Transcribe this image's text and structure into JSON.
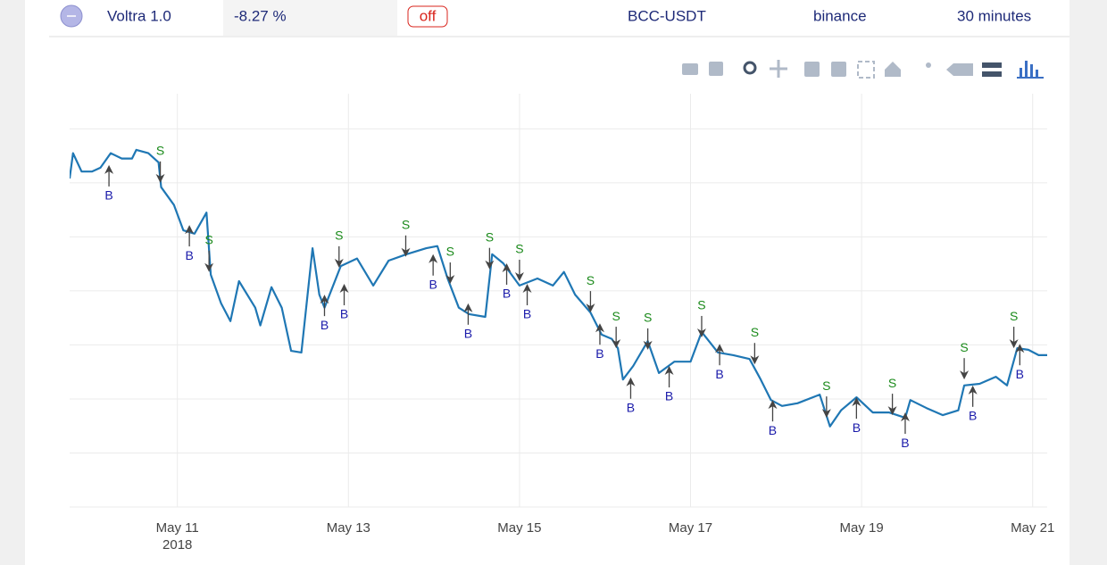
{
  "header": {
    "name": "Voltra 1.0",
    "change": "-8.27 %",
    "status": "off",
    "pair": "BCC-USDT",
    "exchange": "binance",
    "interval": "30 minutes"
  },
  "chart_data": {
    "type": "line",
    "x": [
      9.74,
      9.78,
      9.88,
      10.0,
      10.1,
      10.22,
      10.35,
      10.47,
      10.52,
      10.66,
      10.78,
      10.81,
      10.96,
      11.07,
      11.2,
      11.34,
      11.39,
      11.51,
      11.62,
      11.72,
      11.91,
      11.97,
      12.1,
      12.22,
      12.33,
      12.45,
      12.58,
      12.66,
      12.72,
      12.91,
      13.1,
      13.29,
      13.47,
      13.68,
      13.91,
      14.04,
      14.16,
      14.29,
      14.41,
      14.6,
      14.68,
      14.81,
      15.0,
      15.21,
      15.39,
      15.52,
      15.65,
      15.83,
      15.96,
      16.08,
      16.15,
      16.21,
      16.33,
      16.5,
      16.63,
      16.81,
      17.0,
      17.13,
      17.32,
      17.5,
      17.69,
      17.82,
      17.94,
      18.07,
      18.25,
      18.51,
      18.63,
      18.76,
      18.94,
      19.13,
      19.32,
      19.51,
      19.57,
      19.76,
      19.95,
      20.13,
      20.2,
      20.38,
      20.57,
      20.7,
      20.82,
      20.95,
      21.07,
      21.17
    ],
    "series": [
      {
        "color": "#1f77b4",
        "values": [
          6.08,
          6.55,
          6.21,
          6.21,
          6.28,
          6.55,
          6.45,
          6.45,
          6.61,
          6.55,
          6.38,
          5.92,
          5.59,
          5.12,
          5.06,
          5.45,
          4.3,
          3.77,
          3.44,
          4.18,
          3.69,
          3.36,
          4.07,
          3.69,
          2.89,
          2.86,
          4.79,
          3.93,
          3.69,
          4.46,
          4.6,
          4.1,
          4.56,
          4.68,
          4.79,
          4.83,
          4.23,
          3.69,
          3.57,
          3.52,
          4.68,
          4.51,
          4.1,
          4.23,
          4.1,
          4.35,
          3.93,
          3.6,
          3.19,
          3.11,
          2.94,
          2.36,
          2.61,
          3.07,
          2.48,
          2.69,
          2.69,
          3.24,
          2.86,
          2.81,
          2.74,
          2.36,
          1.98,
          1.87,
          1.92,
          2.08,
          1.49,
          1.79,
          2.03,
          1.75,
          1.75,
          1.65,
          1.98,
          1.83,
          1.7,
          1.79,
          2.25,
          2.28,
          2.41,
          2.25,
          2.94,
          2.91,
          2.81,
          2.81
        ]
      }
    ],
    "annotations": [
      {
        "text": "B",
        "x": 10.2,
        "y": 6.33
      },
      {
        "text": "B",
        "x": 11.14,
        "y": 5.22
      },
      {
        "text": "B",
        "x": 12.72,
        "y": 3.93
      },
      {
        "text": "B",
        "x": 12.95,
        "y": 4.13
      },
      {
        "text": "B",
        "x": 13.99,
        "y": 4.68
      },
      {
        "text": "B",
        "x": 14.4,
        "y": 3.77
      },
      {
        "text": "B",
        "x": 14.85,
        "y": 4.51
      },
      {
        "text": "B",
        "x": 15.09,
        "y": 4.13
      },
      {
        "text": "B",
        "x": 15.94,
        "y": 3.4
      },
      {
        "text": "B",
        "x": 16.3,
        "y": 2.4
      },
      {
        "text": "B",
        "x": 16.75,
        "y": 2.61
      },
      {
        "text": "B",
        "x": 17.34,
        "y": 3.02
      },
      {
        "text": "B",
        "x": 17.96,
        "y": 1.98
      },
      {
        "text": "B",
        "x": 18.94,
        "y": 2.03
      },
      {
        "text": "B",
        "x": 19.51,
        "y": 1.75
      },
      {
        "text": "B",
        "x": 20.3,
        "y": 2.25
      },
      {
        "text": "B",
        "x": 20.85,
        "y": 3.02
      },
      {
        "text": "S",
        "x": 10.8,
        "y": 6.0
      },
      {
        "text": "S",
        "x": 11.37,
        "y": 4.35
      },
      {
        "text": "S",
        "x": 12.89,
        "y": 4.43
      },
      {
        "text": "S",
        "x": 13.67,
        "y": 4.63
      },
      {
        "text": "S",
        "x": 14.19,
        "y": 4.13
      },
      {
        "text": "S",
        "x": 14.65,
        "y": 4.4
      },
      {
        "text": "S",
        "x": 15.0,
        "y": 4.18
      },
      {
        "text": "S",
        "x": 15.83,
        "y": 3.6
      },
      {
        "text": "S",
        "x": 16.13,
        "y": 2.94
      },
      {
        "text": "S",
        "x": 16.5,
        "y": 2.91
      },
      {
        "text": "S",
        "x": 17.13,
        "y": 3.14
      },
      {
        "text": "S",
        "x": 17.75,
        "y": 2.64
      },
      {
        "text": "S",
        "x": 18.59,
        "y": 1.65
      },
      {
        "text": "S",
        "x": 19.36,
        "y": 1.7
      },
      {
        "text": "S",
        "x": 20.2,
        "y": 2.36
      },
      {
        "text": "S",
        "x": 20.78,
        "y": 2.94
      }
    ],
    "buy_color": "#1a1aaa",
    "sell_color": "#1a8a1a",
    "xlim": [
      9.74,
      21.17
    ],
    "xticks": [
      {
        "value": 11,
        "label": "May 11\n2018"
      },
      {
        "value": 13,
        "label": "May 13"
      },
      {
        "value": 15,
        "label": "May 15"
      },
      {
        "value": 17,
        "label": "May 17"
      },
      {
        "value": 19,
        "label": "May 19"
      },
      {
        "value": 21,
        "label": "May 21"
      }
    ],
    "ylim": [
      0,
      7.65
    ],
    "yticks": [
      0,
      1,
      2,
      3,
      4,
      5,
      6,
      7
    ],
    "grid": true
  }
}
